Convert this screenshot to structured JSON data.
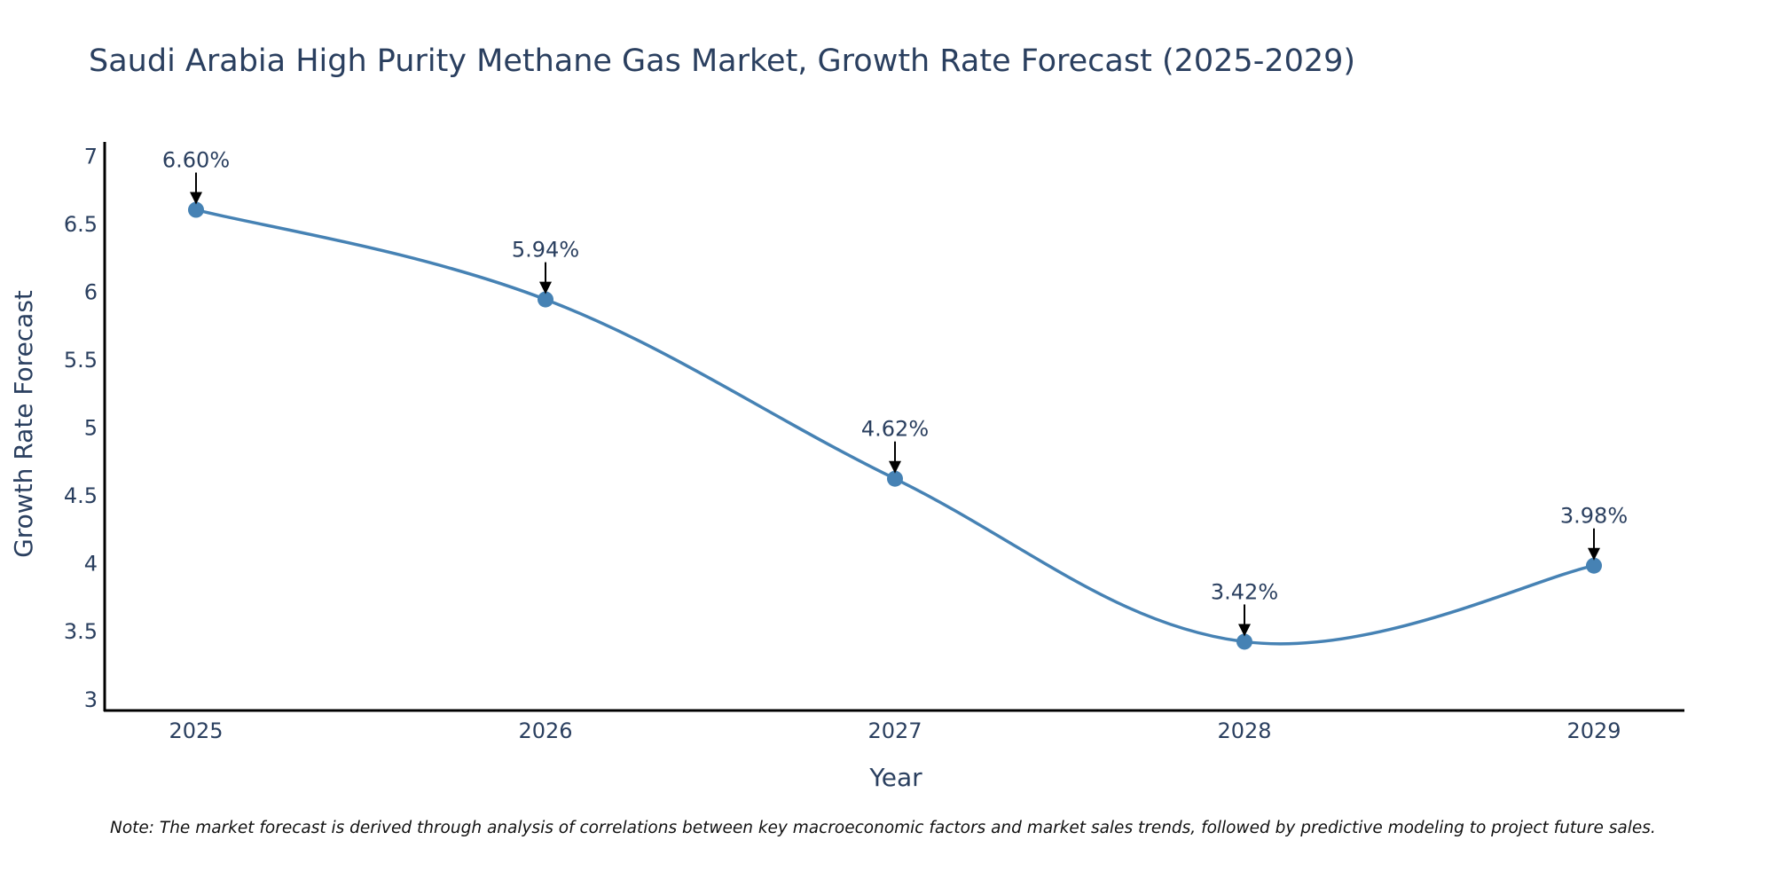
{
  "colors": {
    "line": "#4682B4",
    "marker": "#4682B4",
    "axis": "#000000",
    "text": "#2a3f5f",
    "arrow": "#000000"
  },
  "chart_data": {
    "type": "line",
    "title": "Saudi Arabia High Purity Methane Gas Market, Growth Rate Forecast (2025-2029)",
    "xlabel": "Year",
    "ylabel": "Growth Rate Forecast",
    "categories": [
      "2025",
      "2026",
      "2027",
      "2028",
      "2029"
    ],
    "series": [
      {
        "name": "Growth Rate Forecast",
        "values": [
          6.6,
          5.94,
          4.62,
          3.42,
          3.98
        ],
        "labels": [
          "6.60%",
          "5.94%",
          "4.62%",
          "3.42%",
          "3.98%"
        ]
      }
    ],
    "ylim": [
      2.92,
      7.1
    ],
    "yticks": [
      3,
      3.5,
      4,
      4.5,
      5,
      5.5,
      6,
      6.5,
      7
    ],
    "ytick_labels": [
      "3",
      "3.5",
      "4",
      "4.5",
      "5",
      "5.5",
      "6",
      "6.5",
      "7"
    ],
    "grid": false,
    "line_shape": "spline"
  },
  "note": "Note: The market forecast is derived through analysis of correlations between key macroeconomic factors and market sales trends, followed by predictive modeling to project future sales."
}
